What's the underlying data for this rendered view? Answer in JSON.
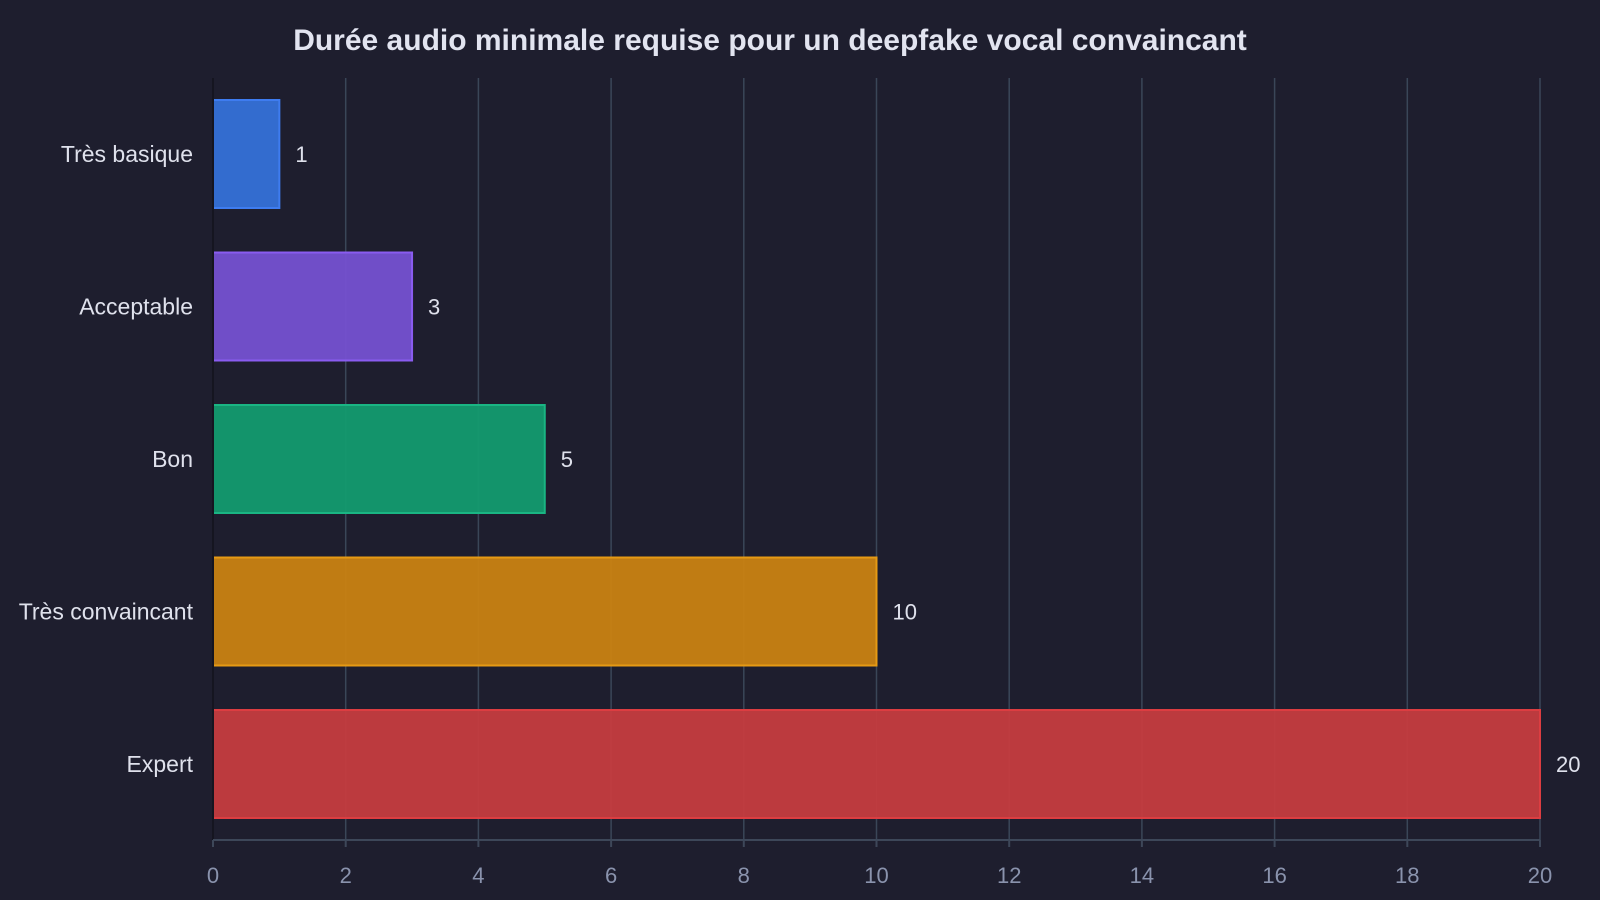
{
  "chart_data": {
    "type": "bar",
    "orientation": "horizontal",
    "title": "Durée audio minimale requise pour un deepfake vocal convaincant",
    "xlabel": "",
    "ylabel": "",
    "categories": [
      "Très basique",
      "Acceptable",
      "Bon",
      "Très convaincant",
      "Expert"
    ],
    "values": [
      1,
      3,
      5,
      10,
      20
    ],
    "data_labels": [
      "1",
      "3",
      "5",
      "10",
      "20"
    ],
    "colors": [
      "#3571d8",
      "#7551d1",
      "#139b6f",
      "#c98212",
      "#c53c3f"
    ],
    "border_colors": [
      "#3e7cf0",
      "#8a5cf0",
      "#1ab583",
      "#e69a14",
      "#dc3d41"
    ],
    "xlim": [
      0,
      20
    ],
    "x_ticks": [
      0,
      2,
      4,
      6,
      8,
      10,
      12,
      14,
      16,
      18,
      20
    ],
    "grid": true,
    "legend": "none",
    "background": "#1e1e2e"
  }
}
